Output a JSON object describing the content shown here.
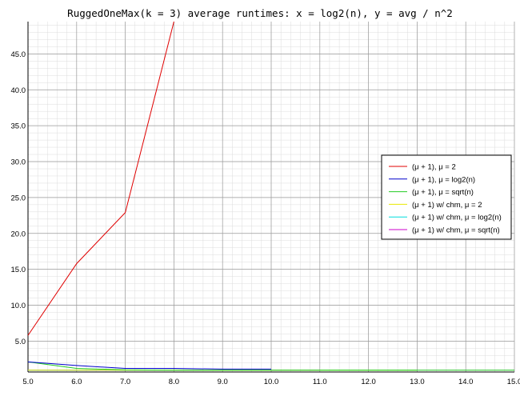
{
  "chart_data": {
    "type": "line",
    "title": "RuggedOneMax(k = 3) average runtimes: x = log2(n), y = avg / n^2",
    "xlabel": "",
    "ylabel": "",
    "xlim": [
      5.0,
      15.0
    ],
    "ylim": [
      0.7,
      49.5
    ],
    "x_ticks": [
      "5.0",
      "6.0",
      "7.0",
      "8.0",
      "9.0",
      "10.0",
      "11.0",
      "12.0",
      "13.0",
      "14.0",
      "15.0"
    ],
    "y_ticks": [
      "5.0",
      "10.0",
      "15.0",
      "20.0",
      "25.0",
      "30.0",
      "35.0",
      "40.0",
      "45.0"
    ],
    "grid": true,
    "legend_position": "right",
    "series": [
      {
        "name": "(μ + 1), μ = 2",
        "color": "#e00000",
        "x": [
          5,
          6,
          7,
          8
        ],
        "y": [
          5.8,
          15.8,
          22.9,
          49.5
        ]
      },
      {
        "name": "(μ + 1), μ = log2(n)",
        "color": "#0000cc",
        "x": [
          5,
          6,
          7,
          8,
          9,
          10
        ],
        "y": [
          2.1,
          1.6,
          1.2,
          1.2,
          1.1,
          1.1
        ]
      },
      {
        "name": "(μ + 1), μ = sqrt(n)",
        "color": "#22cc22",
        "x": [
          5,
          6,
          7,
          8,
          9,
          10,
          11,
          12,
          13,
          14,
          15
        ],
        "y": [
          2.1,
          1.2,
          1.0,
          0.95,
          0.95,
          0.95,
          0.95,
          0.95,
          0.95,
          0.95,
          0.95
        ]
      },
      {
        "name": "(μ + 1) w/ chm, μ = 2",
        "color": "#e8e800",
        "x": [
          5,
          6,
          7,
          8,
          9,
          10,
          11,
          12,
          13
        ],
        "y": [
          0.95,
          0.95,
          0.95,
          0.95,
          0.95,
          0.95,
          0.95,
          0.95,
          0.95
        ]
      },
      {
        "name": "(μ + 1) w/ chm, μ = log2(n)",
        "color": "#00dddd",
        "x": [
          5,
          6,
          7,
          8,
          9,
          10,
          11,
          12,
          13
        ],
        "y": [
          0.95,
          0.95,
          0.95,
          0.95,
          0.95,
          0.95,
          0.95,
          0.95,
          0.95
        ]
      },
      {
        "name": "(μ + 1) w/ chm, μ = sqrt(n)",
        "color": "#cc00cc",
        "x": [
          5,
          6,
          7,
          8,
          9,
          10,
          11
        ],
        "y": [
          0.95,
          0.95,
          0.95,
          0.95,
          0.95,
          0.95,
          0.95
        ]
      }
    ]
  }
}
